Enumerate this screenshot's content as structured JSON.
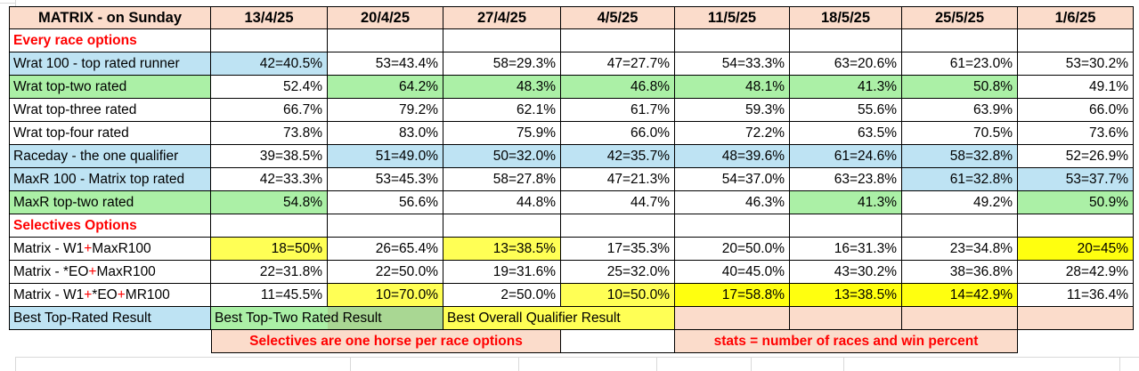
{
  "colors": {
    "salmon": "#FBDCCB",
    "blue": "#BEE3F3",
    "green": "#ABF0A6",
    "greenD": "#A9D793",
    "yellow": "#FFFF55",
    "yellowB": "#FFFF0F",
    "red": "#FF0000",
    "gridline": "#D9D9D9"
  },
  "header": {
    "title": "MATRIX - on Sunday",
    "dates": [
      "13/4/25",
      "20/4/25",
      "27/4/25",
      "4/5/25",
      "11/5/25",
      "18/5/25",
      "25/5/25",
      "1/6/25"
    ]
  },
  "rows": [
    {
      "type": "section",
      "label": "Every race options"
    },
    {
      "type": "data",
      "label": "Wrat 100 - top rated runner",
      "label_fill": "b",
      "cells": [
        {
          "text": "42=40.5%",
          "fill": "b"
        },
        {
          "text": "53=43.4%"
        },
        {
          "text": "58=29.3%"
        },
        {
          "text": "47=27.7%"
        },
        {
          "text": "54=33.3%"
        },
        {
          "text": "63=20.6%"
        },
        {
          "text": "61=23.0%"
        },
        {
          "text": "53=30.2%"
        }
      ]
    },
    {
      "type": "data",
      "label": "Wrat top-two rated",
      "label_fill": "g",
      "cells": [
        {
          "text": "52.4%"
        },
        {
          "text": "64.2%",
          "fill": "g"
        },
        {
          "text": "48.3%",
          "fill": "g"
        },
        {
          "text": "46.8%",
          "fill": "g"
        },
        {
          "text": "48.1%",
          "fill": "g"
        },
        {
          "text": "41.3%",
          "fill": "g"
        },
        {
          "text": "50.8%",
          "fill": "g"
        },
        {
          "text": "49.1%"
        }
      ]
    },
    {
      "type": "data",
      "label": "Wrat top-three rated",
      "cells": [
        {
          "text": "66.7%"
        },
        {
          "text": "79.2%"
        },
        {
          "text": "62.1%"
        },
        {
          "text": "61.7%"
        },
        {
          "text": "59.3%"
        },
        {
          "text": "55.6%"
        },
        {
          "text": "63.9%"
        },
        {
          "text": "66.0%"
        }
      ]
    },
    {
      "type": "data",
      "label": "Wrat top-four rated",
      "cells": [
        {
          "text": "73.8%"
        },
        {
          "text": "83.0%"
        },
        {
          "text": "75.9%"
        },
        {
          "text": "66.0%"
        },
        {
          "text": "72.2%"
        },
        {
          "text": "63.5%"
        },
        {
          "text": "70.5%"
        },
        {
          "text": "73.6%"
        }
      ]
    },
    {
      "type": "data",
      "label": "Raceday - the one qualifier",
      "label_fill": "b",
      "cells": [
        {
          "text": "39=38.5%"
        },
        {
          "text": "51=49.0%",
          "fill": "b"
        },
        {
          "text": "50=32.0%",
          "fill": "b"
        },
        {
          "text": "42=35.7%",
          "fill": "b"
        },
        {
          "text": "48=39.6%",
          "fill": "b"
        },
        {
          "text": "61=24.6%",
          "fill": "b"
        },
        {
          "text": "58=32.8%",
          "fill": "b"
        },
        {
          "text": "52=26.9%"
        }
      ]
    },
    {
      "type": "data",
      "label": "MaxR 100 - Matrix top rated",
      "label_fill": "b",
      "cells": [
        {
          "text": "42=33.3%"
        },
        {
          "text": "53=45.3%"
        },
        {
          "text": "58=27.8%"
        },
        {
          "text": "47=21.3%"
        },
        {
          "text": "54=37.0%"
        },
        {
          "text": "63=23.8%"
        },
        {
          "text": "61=32.8%",
          "fill": "b"
        },
        {
          "text": "53=37.7%",
          "fill": "b"
        }
      ]
    },
    {
      "type": "data",
      "label": "MaxR top-two rated",
      "label_fill": "g",
      "cells": [
        {
          "text": "54.8%",
          "fill": "g"
        },
        {
          "text": "56.6%"
        },
        {
          "text": "44.8%"
        },
        {
          "text": "44.7%"
        },
        {
          "text": "46.3%"
        },
        {
          "text": "41.3%",
          "fill": "g"
        },
        {
          "text": "49.2%"
        },
        {
          "text": "50.9%",
          "fill": "g"
        }
      ]
    },
    {
      "type": "section",
      "label": "Selectives Options"
    },
    {
      "type": "data",
      "label_parts": [
        {
          "t": "Matrix - W1"
        },
        {
          "t": "+",
          "red": true
        },
        {
          "t": "MaxR100"
        }
      ],
      "cells": [
        {
          "text": "18=50%",
          "fill": "y"
        },
        {
          "text": "26=65.4%"
        },
        {
          "text": "13=38.5%",
          "fill": "y"
        },
        {
          "text": "17=35.3%"
        },
        {
          "text": "20=50.0%"
        },
        {
          "text": "16=31.3%"
        },
        {
          "text": "23=34.8%"
        },
        {
          "text": "20=45%",
          "fill": "Y"
        }
      ]
    },
    {
      "type": "data",
      "label_parts": [
        {
          "t": "Matrix - *EO"
        },
        {
          "t": "+",
          "red": true
        },
        {
          "t": "MaxR100"
        }
      ],
      "cells": [
        {
          "text": "22=31.8%"
        },
        {
          "text": "22=50.0%"
        },
        {
          "text": "19=31.6%"
        },
        {
          "text": "25=32.0%"
        },
        {
          "text": "40=45.0%"
        },
        {
          "text": "43=30.2%"
        },
        {
          "text": "38=36.8%"
        },
        {
          "text": "28=42.9%"
        }
      ]
    },
    {
      "type": "data",
      "label_parts": [
        {
          "t": "Matrix - W1"
        },
        {
          "t": "+",
          "red": true
        },
        {
          "t": "*EO"
        },
        {
          "t": "+",
          "red": true
        },
        {
          "t": "MR100"
        }
      ],
      "cells": [
        {
          "text": "11=45.5%"
        },
        {
          "text": "10=70.0%",
          "fill": "y"
        },
        {
          "text": "2=50.0%"
        },
        {
          "text": "10=50.0%",
          "fill": "y"
        },
        {
          "text": "17=58.8%",
          "fill": "Y"
        },
        {
          "text": "13=38.5%",
          "fill": "Y"
        },
        {
          "text": "14=42.9%",
          "fill": "Y"
        },
        {
          "text": "11=36.4%"
        }
      ]
    }
  ],
  "footer": {
    "best_top_rated": "Best Top-Rated Result",
    "best_top_two": "Best Top-Two Rated Result",
    "best_overall": "Best Overall Qualifier Result",
    "note_selectives": "Selectives are one horse per race options",
    "note_stats": "stats = number of races and win percent"
  }
}
